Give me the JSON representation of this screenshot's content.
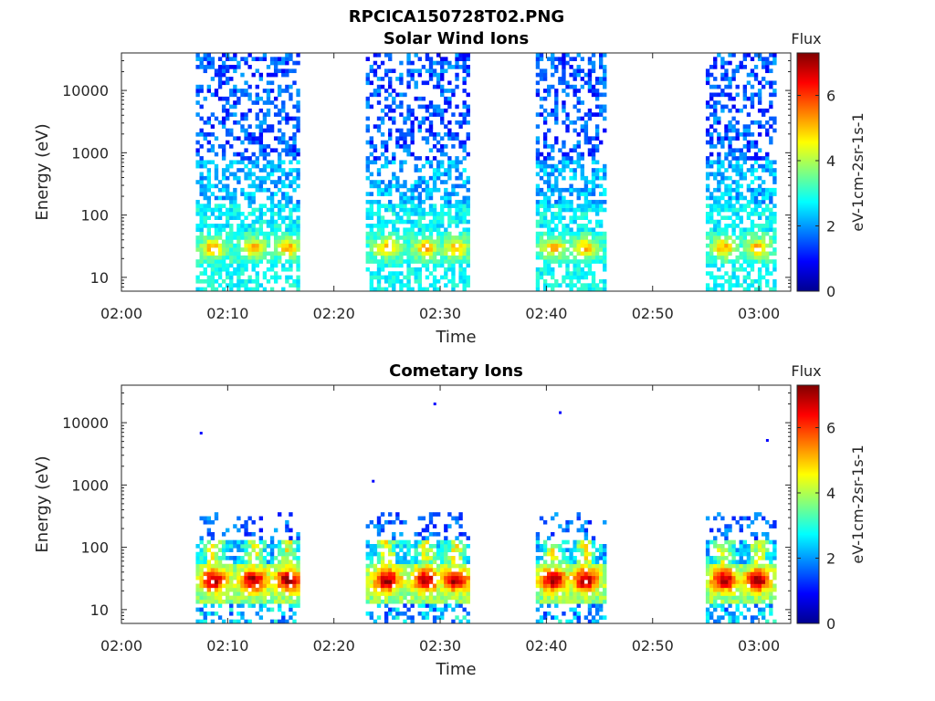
{
  "figure": {
    "title": "RPCICA150728T02.PNG"
  },
  "chart_data": [
    {
      "type": "heatmap",
      "title": "Solar Wind Ions",
      "xlabel": "Time",
      "ylabel": "Energy (eV)",
      "x_ticks": [
        "02:00",
        "02:10",
        "02:20",
        "02:30",
        "02:40",
        "02:50",
        "03:00"
      ],
      "x_range_minutes": [
        0,
        63
      ],
      "y_ticks": [
        "10",
        "100",
        "1000",
        "10000"
      ],
      "y_range": [
        6,
        40000
      ],
      "y_scale": "log",
      "colorbar": {
        "title": "Flux",
        "label": "eV-1cm-2sr-1s-1",
        "ticks": [
          "0",
          "2",
          "4",
          "6"
        ],
        "range": [
          0,
          7.3
        ],
        "colormap": "jet"
      },
      "active_intervals_minutes": [
        [
          7,
          16.5
        ],
        [
          23,
          32.5
        ],
        [
          39,
          45.5
        ],
        [
          55,
          61.5
        ]
      ],
      "peak_energy_eV": 30,
      "peak_flux": 4.8,
      "peak_times_minutes": [
        8.5,
        12.3,
        15.5,
        24.8,
        28.5,
        31.3,
        40.5,
        43.5,
        56.5,
        59.8
      ]
    },
    {
      "type": "heatmap",
      "title": "Cometary Ions",
      "xlabel": "Time",
      "ylabel": "Energy (eV)",
      "x_ticks": [
        "02:00",
        "02:10",
        "02:20",
        "02:30",
        "02:40",
        "02:50",
        "03:00"
      ],
      "x_range_minutes": [
        0,
        63
      ],
      "y_ticks": [
        "10",
        "100",
        "1000",
        "10000"
      ],
      "y_range": [
        6,
        40000
      ],
      "y_scale": "log",
      "colorbar": {
        "title": "Flux",
        "label": "eV-1cm-2sr-1s-1",
        "ticks": [
          "0",
          "2",
          "4",
          "6"
        ],
        "range": [
          0,
          7.3
        ],
        "colormap": "jet"
      },
      "active_intervals_minutes": [
        [
          7,
          16.5
        ],
        [
          23,
          32.5
        ],
        [
          39,
          45.5
        ],
        [
          55,
          61.5
        ]
      ],
      "peak_energy_eV": 30,
      "peak_flux": 6.6,
      "peak_times_minutes": [
        8.5,
        12.3,
        15.5,
        24.8,
        28.5,
        31.3,
        40.5,
        43.5,
        56.5,
        59.8
      ],
      "isolated_points": [
        [
          7.5,
          6800
        ],
        [
          23.7,
          1150
        ],
        [
          29.5,
          20000
        ],
        [
          41.3,
          14500
        ],
        [
          60.8,
          5200
        ]
      ]
    }
  ]
}
